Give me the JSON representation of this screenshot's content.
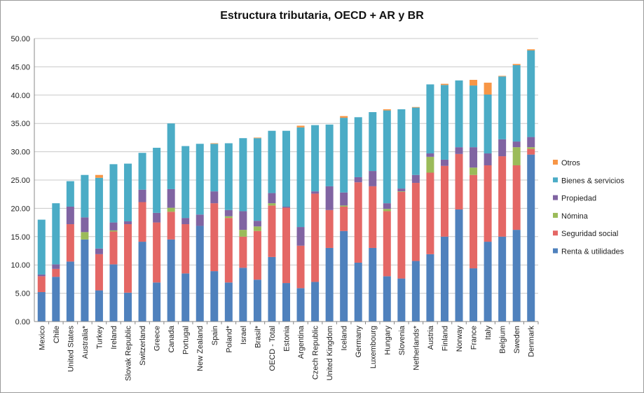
{
  "chart_data": {
    "type": "bar",
    "stacked": true,
    "title": "Estructura tributaria, OECD + AR y BR",
    "xlabel": "",
    "ylabel": "",
    "ylim": [
      0,
      50
    ],
    "yticks": [
      "0.00",
      "5.00",
      "10.00",
      "15.00",
      "20.00",
      "25.00",
      "30.00",
      "35.00",
      "40.00",
      "45.00",
      "50.00"
    ],
    "grid": true,
    "legend_position": "right",
    "categories": [
      "Mexico",
      "Chile",
      "United States",
      "Australia*",
      "Turkey",
      "Ireland",
      "Slovak Republic",
      "Switzerland",
      "Greece",
      "Canada",
      "Portugal",
      "New Zealand",
      "Spain",
      "Poland*",
      "Israel",
      "Brasil*",
      "OECD - Total",
      "Estonia",
      "Argentina",
      "Czech Republic",
      "United Kingdom",
      "Iceland",
      "Germany",
      "Luxembourg",
      "Hungary",
      "Slovenia",
      "Netherlands*",
      "Austria",
      "Finland",
      "Norway",
      "France",
      "Italy",
      "Belgium",
      "Sweden",
      "Denmark"
    ],
    "series": [
      {
        "name": "Renta & utilidades",
        "color": "#4f81bd",
        "values": [
          5.2,
          7.9,
          10.6,
          14.5,
          5.5,
          10.1,
          5.1,
          14.1,
          6.9,
          14.5,
          8.5,
          16.9,
          8.9,
          6.9,
          9.5,
          7.4,
          11.4,
          6.8,
          5.9,
          7.0,
          13.0,
          16.0,
          10.4,
          13.0,
          8.0,
          7.6,
          10.7,
          11.9,
          15.0,
          19.8,
          9.4,
          14.1,
          15.0,
          16.2,
          29.5
        ]
      },
      {
        "name": "Seguridad social",
        "color": "#e46765",
        "values": [
          2.8,
          1.4,
          6.6,
          0.0,
          6.4,
          5.8,
          12.1,
          7.0,
          10.6,
          4.9,
          8.7,
          0.0,
          12.0,
          11.4,
          5.5,
          8.6,
          9.1,
          13.3,
          7.5,
          15.6,
          6.7,
          4.3,
          14.2,
          10.9,
          11.5,
          15.3,
          13.8,
          14.4,
          12.5,
          9.8,
          16.5,
          13.5,
          14.2,
          11.4,
          1.0
        ]
      },
      {
        "name": "Nómina",
        "color": "#9bbb59",
        "values": [
          0.0,
          0.0,
          0.0,
          1.3,
          0.0,
          0.2,
          0.0,
          0.0,
          0.0,
          0.7,
          0.0,
          0.0,
          0.0,
          0.3,
          1.2,
          0.8,
          0.4,
          0.0,
          0.0,
          0.0,
          0.0,
          0.2,
          0.0,
          0.0,
          0.4,
          0.1,
          0.0,
          2.8,
          0.0,
          0.0,
          1.3,
          0.0,
          0.0,
          3.2,
          0.3
        ]
      },
      {
        "name": "Propiedad",
        "color": "#8064a2",
        "values": [
          0.3,
          0.8,
          3.1,
          2.6,
          1.0,
          1.4,
          0.5,
          2.2,
          1.7,
          3.3,
          1.1,
          2.0,
          2.1,
          1.1,
          3.3,
          1.0,
          1.8,
          0.2,
          3.3,
          0.4,
          4.2,
          2.3,
          0.9,
          2.7,
          1.0,
          0.5,
          1.4,
          0.6,
          1.1,
          1.2,
          3.6,
          2.1,
          3.0,
          1.0,
          1.8
        ]
      },
      {
        "name": "Bienes & servicios",
        "color": "#4bacc6",
        "values": [
          9.7,
          10.8,
          4.5,
          7.5,
          12.5,
          10.3,
          10.2,
          6.5,
          11.5,
          11.6,
          12.7,
          12.5,
          8.4,
          11.8,
          12.9,
          14.6,
          11.0,
          13.4,
          17.6,
          11.7,
          10.9,
          13.2,
          10.6,
          10.4,
          16.4,
          14.0,
          11.9,
          12.2,
          13.2,
          11.8,
          10.9,
          10.4,
          11.1,
          13.5,
          15.3
        ]
      },
      {
        "name": "Otros",
        "color": "#f79646",
        "values": [
          0.0,
          0.0,
          0.0,
          0.0,
          0.5,
          0.0,
          0.0,
          0.0,
          0.0,
          0.0,
          0.0,
          0.0,
          0.1,
          0.0,
          0.0,
          0.1,
          0.0,
          0.0,
          0.3,
          0.0,
          0.0,
          0.3,
          0.0,
          0.0,
          0.2,
          0.0,
          0.1,
          0.0,
          0.2,
          0.0,
          1.0,
          2.1,
          0.1,
          0.2,
          0.2
        ]
      }
    ]
  }
}
